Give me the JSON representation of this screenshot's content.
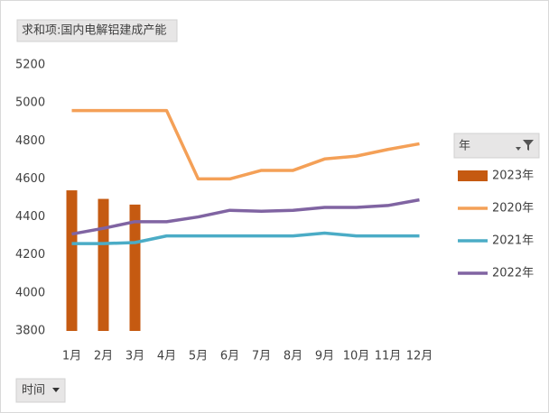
{
  "chart_data": {
    "type": "combo",
    "value_field": "求和项:国内电解铝建成产能",
    "legend_title": "年",
    "axis_field": "时间",
    "categories": [
      "1月",
      "2月",
      "3月",
      "4月",
      "5月",
      "6月",
      "7月",
      "8月",
      "9月",
      "10月",
      "11月",
      "12月"
    ],
    "series": [
      {
        "name": "2023年",
        "type": "bar",
        "color": "#c55a11",
        "values": [
          4540,
          4495,
          4465,
          null,
          null,
          null,
          null,
          null,
          null,
          null,
          null,
          null
        ]
      },
      {
        "name": "2020年",
        "type": "line",
        "color": "#f4a057",
        "values": [
          4960,
          4960,
          4960,
          4960,
          4600,
          4600,
          4645,
          4645,
          4705,
          4720,
          4755,
          4785
        ]
      },
      {
        "name": "2021年",
        "type": "line",
        "color": "#4bacc6",
        "values": [
          4260,
          4260,
          4265,
          4300,
          4300,
          4300,
          4300,
          4300,
          4315,
          4300,
          4300,
          4300
        ]
      },
      {
        "name": "2022年",
        "type": "line",
        "color": "#8064a2",
        "values": [
          4310,
          4340,
          4375,
          4375,
          4400,
          4435,
          4430,
          4435,
          4450,
          4450,
          4460,
          4490
        ]
      }
    ],
    "ylim": [
      3800,
      5200
    ],
    "yticks": [
      3800,
      4000,
      4200,
      4400,
      4600,
      4800,
      5000,
      5200
    ],
    "grid": false,
    "legend": "right"
  }
}
